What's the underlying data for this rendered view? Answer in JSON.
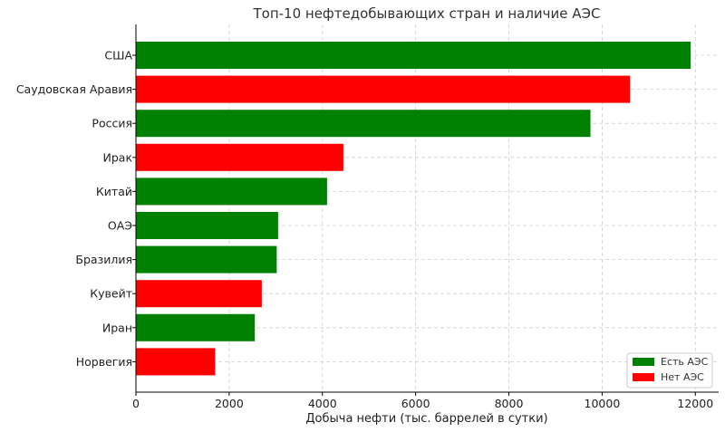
{
  "chart_data": {
    "type": "bar",
    "orientation": "horizontal",
    "title": "Топ-10 нефтедобывающих стран и наличие АЭС",
    "xlabel": "Добыча нефти (тыс. баррелей в сутки)",
    "ylabel": "",
    "xlim": [
      0,
      12500
    ],
    "xticks": [
      0,
      2000,
      4000,
      6000,
      8000,
      10000,
      12000
    ],
    "grid": true,
    "legend_position": "bottom-right",
    "categories": [
      "США",
      "Саудовская Аравия",
      "Россия",
      "Ирак",
      "Китай",
      "ОАЭ",
      "Бразилия",
      "Кувейт",
      "Иран",
      "Норвегия"
    ],
    "values": [
      11900,
      10600,
      9750,
      4450,
      4100,
      3050,
      3020,
      2700,
      2550,
      1700
    ],
    "has_npp": [
      true,
      false,
      true,
      false,
      true,
      true,
      true,
      false,
      true,
      false
    ],
    "legend": [
      {
        "label": "Есть АЭС",
        "color": "#008000"
      },
      {
        "label": "Нет АЭС",
        "color": "#ff0000"
      }
    ]
  }
}
